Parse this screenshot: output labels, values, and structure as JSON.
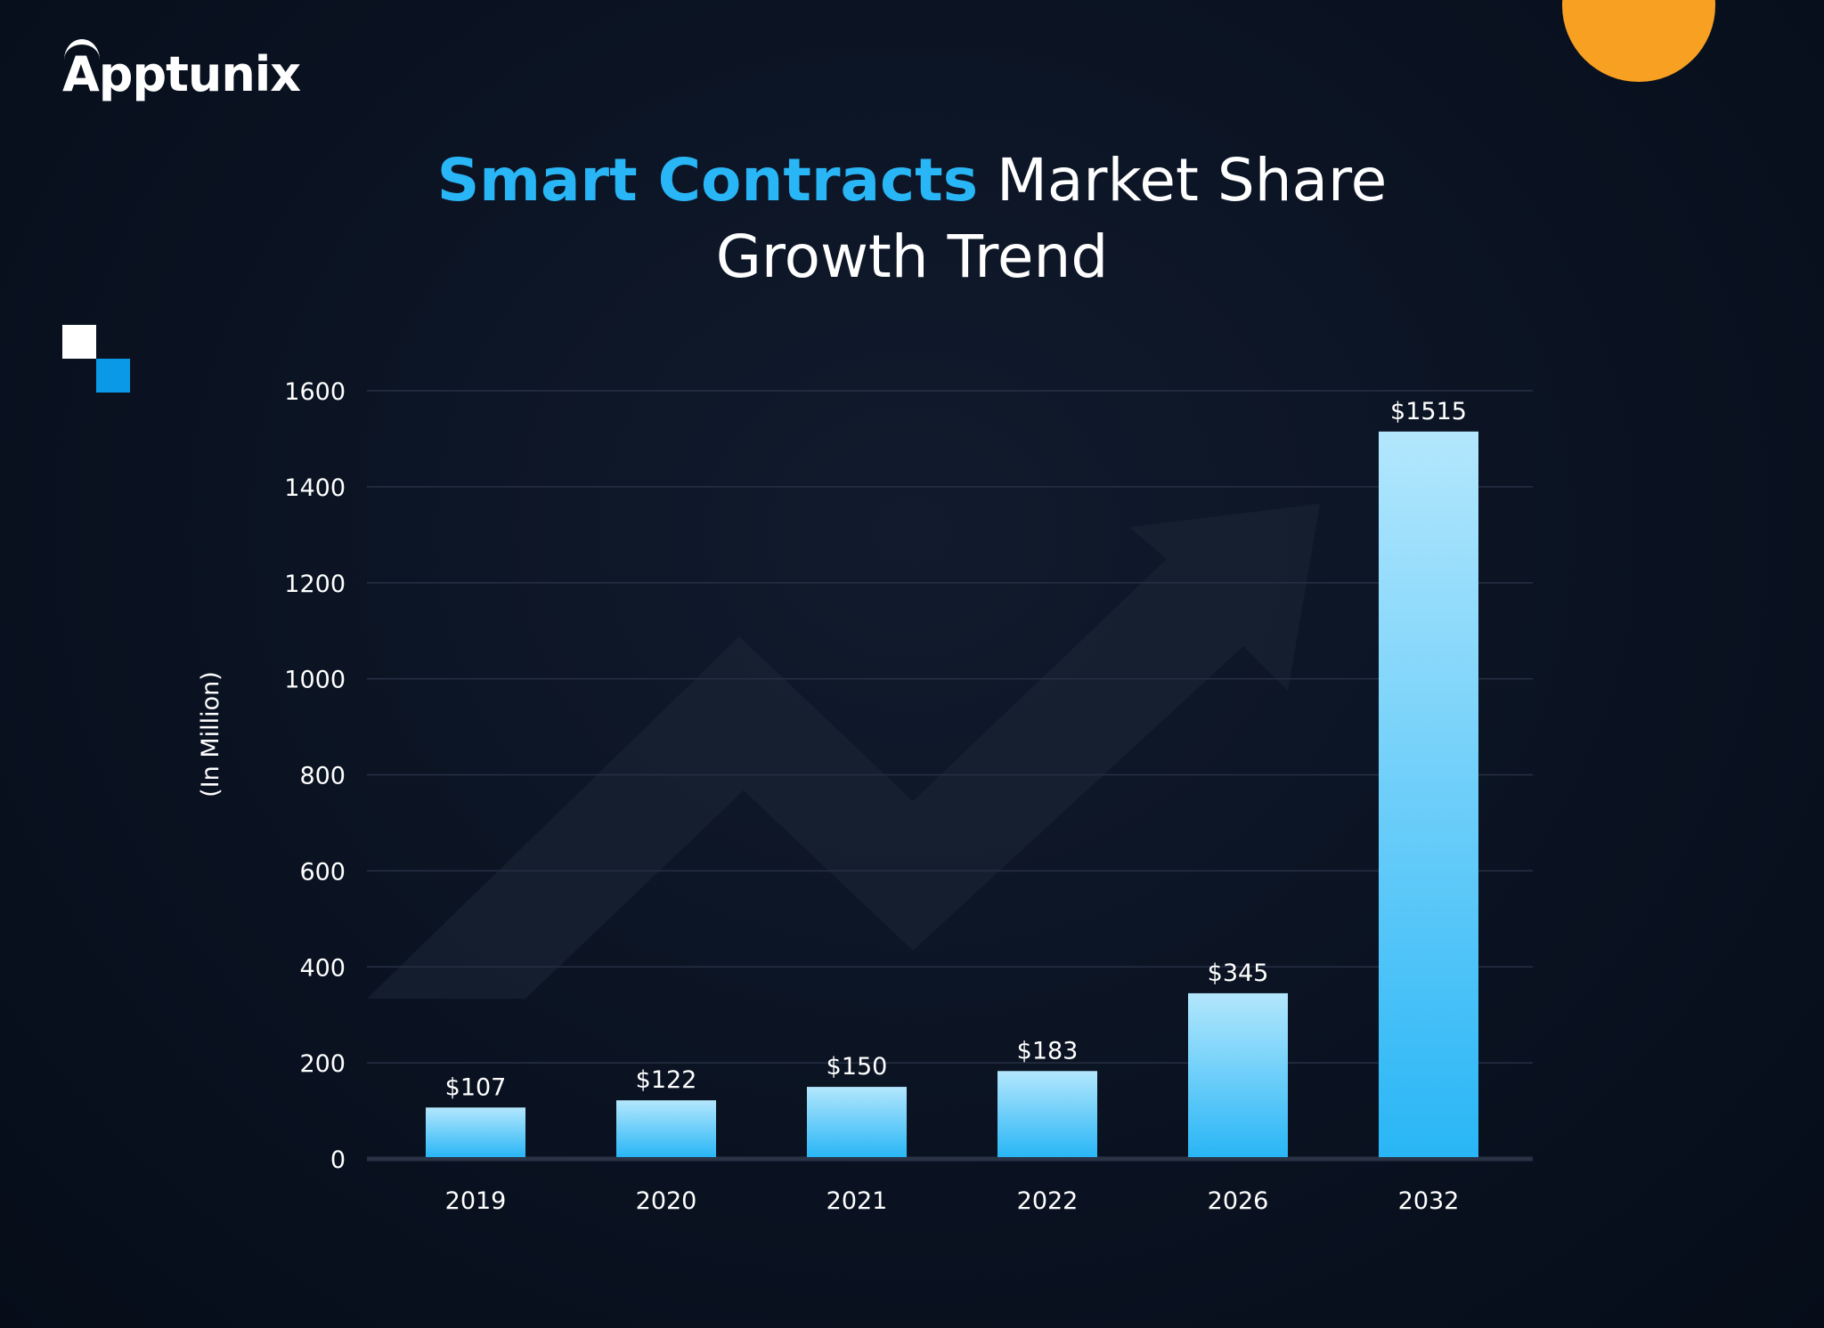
{
  "brand": {
    "logo_text": "Apptunix"
  },
  "colors": {
    "background": "#0a1221",
    "accent": "#29b6f6",
    "bar_top": "#b3e7fd",
    "bar_bottom": "#29b6f6",
    "orange": "#f7a021"
  },
  "chart_data": {
    "type": "bar",
    "title_highlight": "Smart Contracts",
    "title_rest": "Market Share",
    "title_line2": "Growth Trend",
    "ylabel": "(In Million)",
    "xlabel": "",
    "categories": [
      "2019",
      "2020",
      "2021",
      "2022",
      "2026",
      "2032"
    ],
    "values": [
      107,
      122,
      150,
      183,
      345,
      1515
    ],
    "data_labels": [
      "$107",
      "$122",
      "$150",
      "$183",
      "$345",
      "$1515"
    ],
    "ylim": [
      0,
      1600
    ],
    "yticks": [
      "0",
      "200",
      "400",
      "600",
      "800",
      "1000",
      "1200",
      "1400",
      "1600"
    ],
    "grid": true
  }
}
